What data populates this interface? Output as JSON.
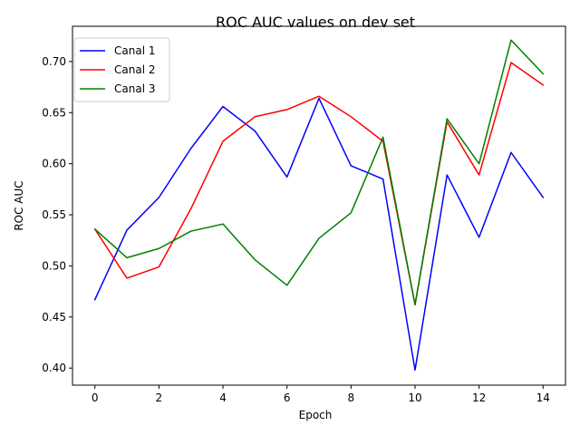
{
  "chart_data": {
    "type": "line",
    "title": "ROC AUC values on dev set",
    "xlabel": "Epoch",
    "ylabel": "ROC AUC",
    "xlim": [
      -0.7,
      14.7
    ],
    "ylim": [
      0.3833,
      0.7345
    ],
    "xticks": [
      0,
      2,
      4,
      6,
      8,
      10,
      12,
      14
    ],
    "xtick_labels": [
      "0",
      "2",
      "4",
      "6",
      "8",
      "10",
      "12",
      "14"
    ],
    "yticks": [
      0.4,
      0.45,
      0.5,
      0.55,
      0.6,
      0.65,
      0.7
    ],
    "ytick_labels": [
      "0.40",
      "0.45",
      "0.50",
      "0.55",
      "0.60",
      "0.65",
      "0.70"
    ],
    "grid": false,
    "legend_position": "top-left",
    "x": [
      0,
      1,
      2,
      3,
      4,
      5,
      6,
      7,
      8,
      9,
      10,
      11,
      12,
      13,
      14
    ],
    "series": [
      {
        "name": "Canal 1",
        "color": "#0000ff",
        "values": [
          0.467,
          0.535,
          0.567,
          0.615,
          0.656,
          0.632,
          0.587,
          0.664,
          0.598,
          0.585,
          0.398,
          0.589,
          0.528,
          0.611,
          0.567
        ]
      },
      {
        "name": "Canal 2",
        "color": "#ff0000",
        "values": [
          0.536,
          0.488,
          0.499,
          0.556,
          0.622,
          0.646,
          0.653,
          0.666,
          0.646,
          0.622,
          0.462,
          0.641,
          0.589,
          0.699,
          0.677
        ]
      },
      {
        "name": "Canal 3",
        "color": "#008000",
        "values": [
          0.536,
          0.508,
          0.517,
          0.534,
          0.541,
          0.506,
          0.481,
          0.527,
          0.552,
          0.626,
          0.462,
          0.644,
          0.6,
          0.721,
          0.688
        ]
      }
    ]
  }
}
